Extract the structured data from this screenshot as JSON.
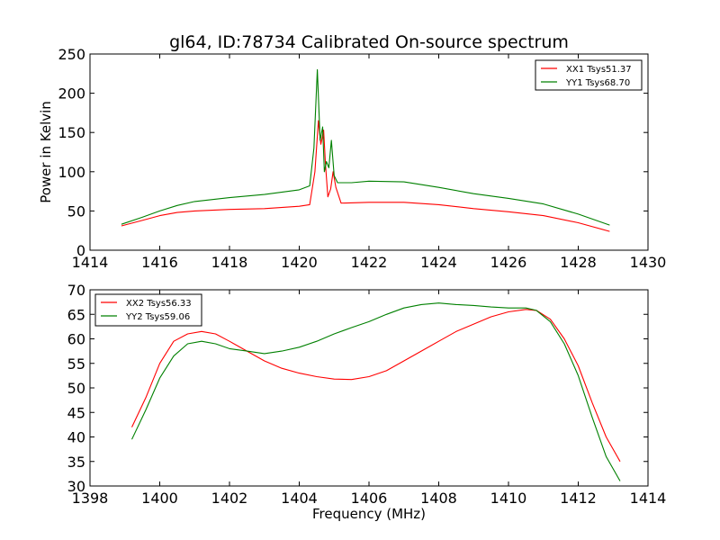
{
  "figure": {
    "title": "gl64, ID:78734 Calibrated On-source spectrum",
    "xlabel": "Frequency (MHz)",
    "ylabel": "Power in Kelvin"
  },
  "chart_data": [
    {
      "type": "line",
      "xlim": [
        1414,
        1430
      ],
      "ylim": [
        0,
        250
      ],
      "xticks": [
        "1414",
        "1416",
        "1418",
        "1420",
        "1422",
        "1424",
        "1426",
        "1428",
        "1430"
      ],
      "yticks": [
        "0",
        "50",
        "100",
        "150",
        "200",
        "250"
      ],
      "legend": "top-right",
      "grid": false,
      "series": [
        {
          "name": "XX1 Tsys51.37",
          "color": "#ff0000",
          "x": [
            1414.9,
            1415.5,
            1416.0,
            1416.5,
            1417.0,
            1418.0,
            1419.0,
            1420.0,
            1420.3,
            1420.45,
            1420.55,
            1420.62,
            1420.7,
            1420.75,
            1420.82,
            1420.9,
            1420.97,
            1421.05,
            1421.2,
            1422.0,
            1423.0,
            1424.0,
            1425.0,
            1426.0,
            1427.0,
            1428.0,
            1428.9
          ],
          "y": [
            31,
            38,
            44,
            48,
            50,
            52,
            53,
            56,
            58,
            100,
            165,
            135,
            153,
            110,
            68,
            78,
            100,
            80,
            60,
            61,
            61,
            58,
            53,
            49,
            44,
            35,
            24
          ]
        },
        {
          "name": "YY1 Tsys68.70",
          "color": "#008000",
          "x": [
            1414.9,
            1415.5,
            1416.0,
            1416.5,
            1417.0,
            1418.0,
            1419.0,
            1420.0,
            1420.3,
            1420.42,
            1420.52,
            1420.6,
            1420.67,
            1420.72,
            1420.78,
            1420.85,
            1420.92,
            1421.0,
            1421.1,
            1421.5,
            1422.0,
            1423.0,
            1424.0,
            1425.0,
            1426.0,
            1427.0,
            1428.0,
            1428.9
          ],
          "y": [
            33,
            42,
            50,
            57,
            62,
            67,
            71,
            77,
            82,
            130,
            230,
            140,
            157,
            100,
            113,
            105,
            140,
            95,
            86,
            86,
            88,
            87,
            80,
            72,
            66,
            59,
            46,
            32
          ]
        }
      ]
    },
    {
      "type": "line",
      "xlim": [
        1398,
        1414
      ],
      "ylim": [
        30,
        70
      ],
      "xticks": [
        "1398",
        "1400",
        "1402",
        "1404",
        "1406",
        "1408",
        "1410",
        "1412",
        "1414"
      ],
      "yticks": [
        "30",
        "35",
        "40",
        "45",
        "50",
        "55",
        "60",
        "65",
        "70"
      ],
      "legend": "top-left",
      "grid": false,
      "series": [
        {
          "name": "XX2 Tsys56.33",
          "color": "#ff0000",
          "x": [
            1399.2,
            1399.6,
            1400.0,
            1400.4,
            1400.8,
            1401.2,
            1401.6,
            1402.0,
            1402.5,
            1403.0,
            1403.5,
            1404.0,
            1404.5,
            1405.0,
            1405.5,
            1406.0,
            1406.5,
            1407.0,
            1407.5,
            1408.0,
            1408.5,
            1409.0,
            1409.5,
            1410.0,
            1410.5,
            1410.8,
            1411.2,
            1411.6,
            1412.0,
            1412.4,
            1412.8,
            1413.2
          ],
          "y": [
            42,
            48,
            55,
            59.5,
            61,
            61.5,
            61,
            59.5,
            57.5,
            55.5,
            54,
            53,
            52.3,
            51.8,
            51.7,
            52.3,
            53.5,
            55.5,
            57.5,
            59.5,
            61.5,
            63,
            64.5,
            65.5,
            66,
            65.8,
            64,
            60,
            54.5,
            47,
            40,
            35
          ]
        },
        {
          "name": "YY2 Tsys59.06",
          "color": "#008000",
          "x": [
            1399.2,
            1399.6,
            1400.0,
            1400.4,
            1400.8,
            1401.2,
            1401.6,
            1402.0,
            1402.5,
            1403.0,
            1403.5,
            1404.0,
            1404.5,
            1405.0,
            1405.5,
            1406.0,
            1406.5,
            1407.0,
            1407.5,
            1408.0,
            1408.5,
            1409.0,
            1409.5,
            1410.0,
            1410.5,
            1410.8,
            1411.2,
            1411.6,
            1412.0,
            1412.4,
            1412.8,
            1413.2
          ],
          "y": [
            39.5,
            45.5,
            52,
            56.5,
            59,
            59.5,
            59,
            58,
            57.5,
            57,
            57.5,
            58.3,
            59.5,
            61,
            62.3,
            63.5,
            65,
            66.3,
            67,
            67.3,
            67,
            66.8,
            66.5,
            66.3,
            66.3,
            65.8,
            63.5,
            59,
            52.5,
            44,
            36,
            31
          ]
        }
      ]
    }
  ]
}
